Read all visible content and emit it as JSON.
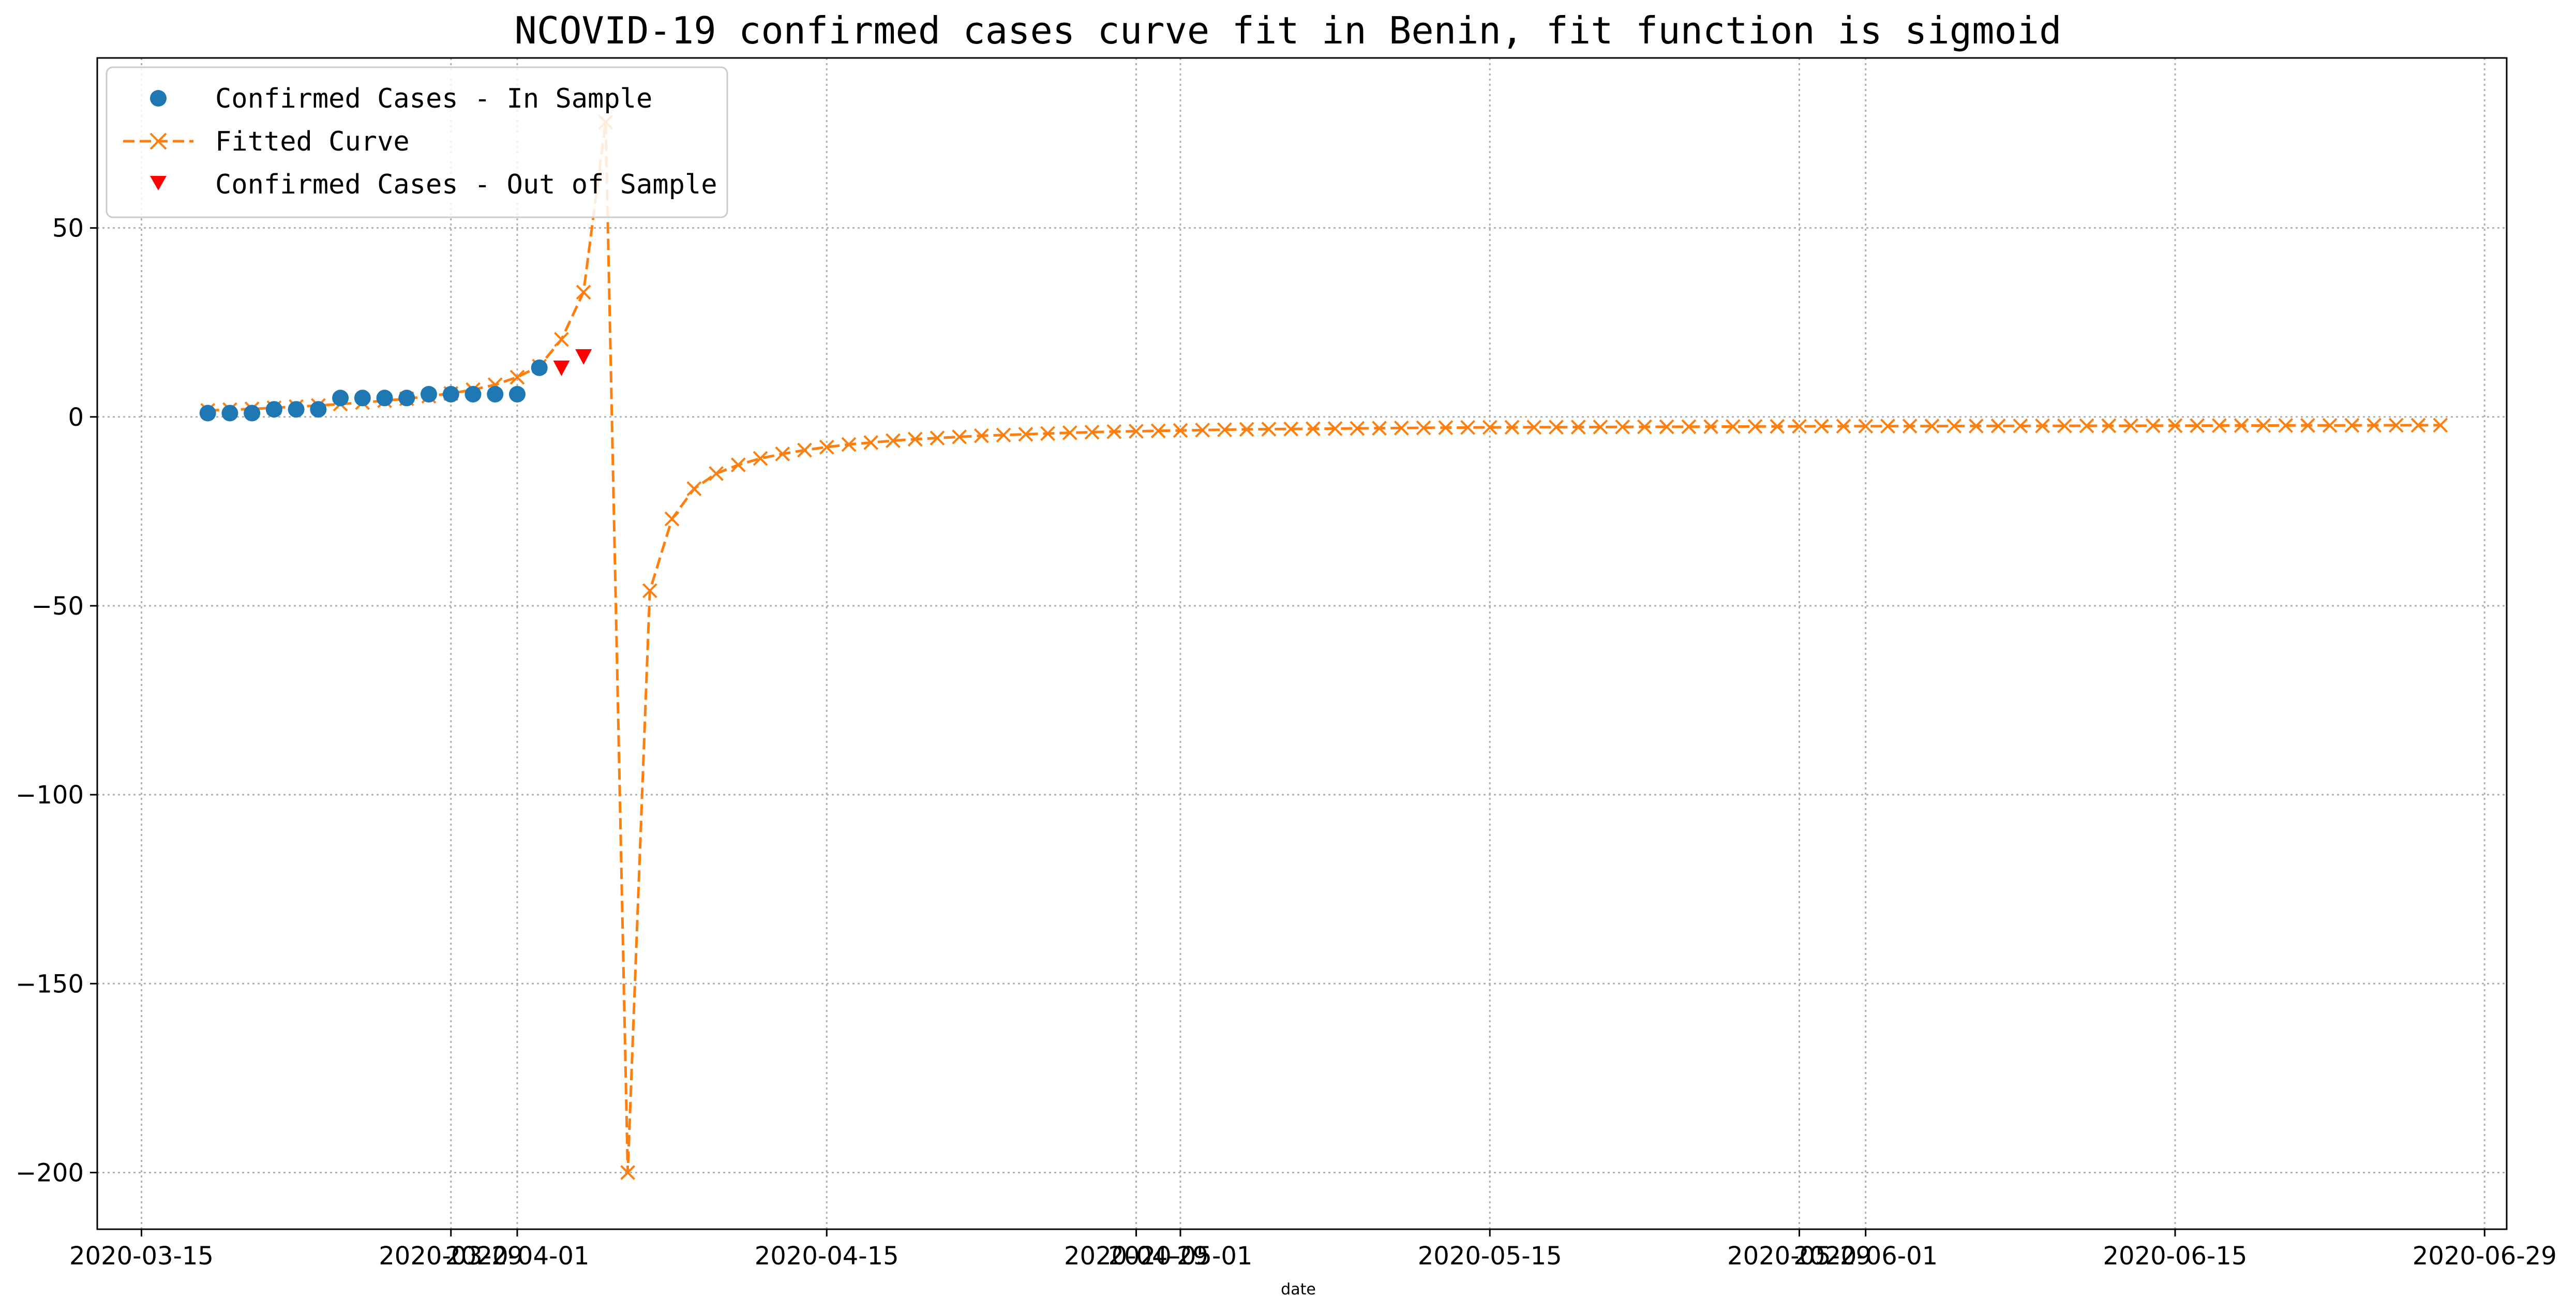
{
  "chart_data": {
    "type": "line",
    "title": "NCOVID-19 confirmed cases curve fit in Benin, fit function is sigmoid",
    "xlabel": "date",
    "ylabel": "",
    "xlim": [
      "2020-03-13",
      "2020-06-30"
    ],
    "ylim": [
      -215,
      95
    ],
    "grid": true,
    "legend_position": "top-left",
    "x_ticks": [
      "2020-03-15",
      "2020-03-29",
      "2020-04-01",
      "2020-04-15",
      "2020-04-29",
      "2020-05-01",
      "2020-05-15",
      "2020-05-29",
      "2020-06-01",
      "2020-06-15",
      "2020-06-29"
    ],
    "y_ticks": [
      50,
      0,
      -50,
      -100,
      -150,
      -200
    ],
    "colors": {
      "in_sample": "#1f77b4",
      "fitted": "#ff7f0e",
      "out_sample": "#ff0000"
    },
    "series": [
      {
        "name": "Confirmed Cases - In Sample",
        "marker": "circle",
        "x": [
          "2020-03-18",
          "2020-03-19",
          "2020-03-20",
          "2020-03-21",
          "2020-03-22",
          "2020-03-23",
          "2020-03-24",
          "2020-03-25",
          "2020-03-26",
          "2020-03-27",
          "2020-03-28",
          "2020-03-29",
          "2020-03-30",
          "2020-03-31",
          "2020-04-01",
          "2020-04-02"
        ],
        "y": [
          1,
          1,
          1,
          2,
          2,
          2,
          5,
          5,
          5,
          5,
          6,
          6,
          6,
          6,
          6,
          13
        ]
      },
      {
        "name": "Fitted Curve",
        "marker": "x",
        "line": "dashed",
        "x_start": "2020-03-18",
        "x_step_days": 1,
        "y": [
          1.7,
          1.9,
          2.1,
          2.4,
          2.7,
          3.0,
          3.4,
          3.8,
          4.3,
          4.8,
          5.5,
          6.2,
          7.2,
          8.5,
          10.5,
          13.4,
          20.5,
          33,
          78,
          -200,
          -46,
          -27,
          -19,
          -15,
          -12.7,
          -11,
          -9.8,
          -8.8,
          -8.0,
          -7.3,
          -6.8,
          -6.3,
          -5.9,
          -5.6,
          -5.3,
          -5.0,
          -4.8,
          -4.6,
          -4.4,
          -4.2,
          -4.05,
          -3.9,
          -3.8,
          -3.7,
          -3.6,
          -3.5,
          -3.4,
          -3.3,
          -3.25,
          -3.2,
          -3.15,
          -3.1,
          -3.05,
          -3.0,
          -2.95,
          -2.9,
          -2.85,
          -2.8,
          -2.78,
          -2.76,
          -2.74,
          -2.72,
          -2.7,
          -2.68,
          -2.66,
          -2.64,
          -2.62,
          -2.6,
          -2.58,
          -2.56,
          -2.54,
          -2.52,
          -2.5,
          -2.48,
          -2.47,
          -2.46,
          -2.45,
          -2.44,
          -2.43,
          -2.42,
          -2.41,
          -2.4,
          -2.39,
          -2.38,
          -2.37,
          -2.36,
          -2.35,
          -2.34,
          -2.33,
          -2.32,
          -2.31,
          -2.3,
          -2.29,
          -2.28,
          -2.27,
          -2.26,
          -2.25,
          -2.24,
          -2.23,
          -2.22,
          -2.21,
          -2.2
        ]
      },
      {
        "name": "Confirmed Cases - Out of Sample",
        "marker": "triangle-down",
        "x": [
          "2020-04-03",
          "2020-04-04"
        ],
        "y": [
          13,
          16
        ]
      }
    ]
  }
}
